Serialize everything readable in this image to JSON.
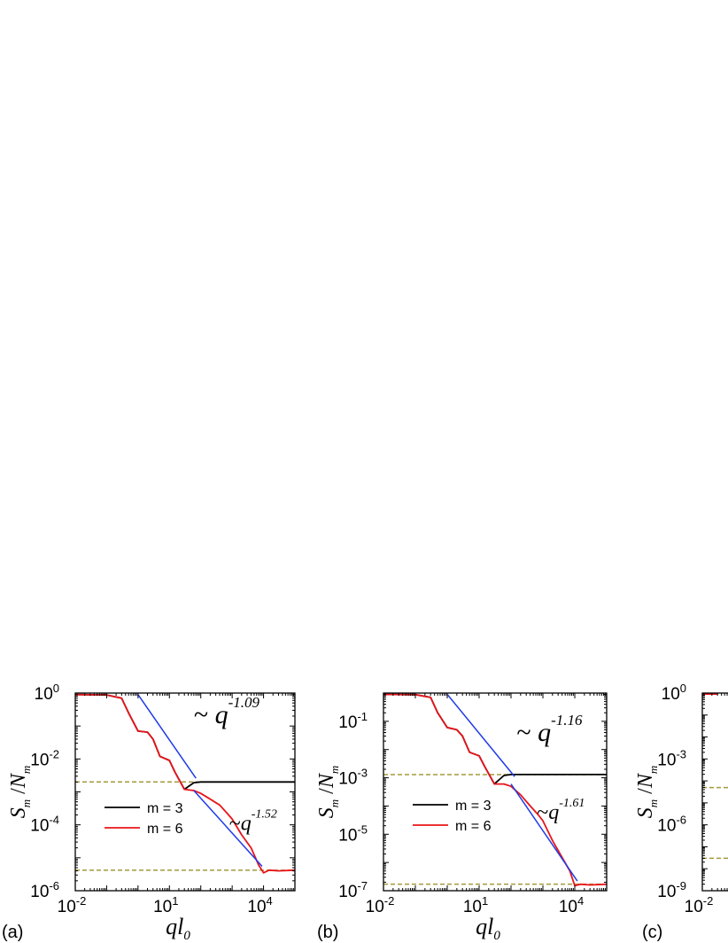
{
  "chart_data": [
    {
      "type": "line",
      "panel_label": "(a)",
      "xlabel": "ql",
      "xlabel_sub": "0",
      "ylabel_num": "S",
      "ylabel_num_sub": "m",
      "ylabel_den": "N",
      "ylabel_den_sub": "m",
      "xscale": "log",
      "yscale": "log",
      "xlim": [
        0.01,
        100000
      ],
      "ylim": [
        1e-06,
        1
      ],
      "xticks": [
        {
          "value": 0.01,
          "base": "10",
          "exp": "-2"
        },
        {
          "value": 10,
          "base": "10",
          "exp": "1"
        },
        {
          "value": 10000,
          "base": "10",
          "exp": "4"
        }
      ],
      "yticks": [
        {
          "value": 1,
          "base": "10",
          "exp": "0"
        },
        {
          "value": 0.01,
          "base": "10",
          "exp": "-2"
        },
        {
          "value": 0.0001,
          "base": "10",
          "exp": "-4"
        },
        {
          "value": 1e-06,
          "base": "10",
          "exp": "-6"
        }
      ],
      "legend": {
        "position": "lower-left",
        "entries": [
          {
            "label": "m = 3",
            "color": "#000000"
          },
          {
            "label": "m = 6",
            "color": "#e8141a"
          }
        ]
      },
      "series": [
        {
          "name": "m = 3",
          "color": "#000000",
          "x": [
            0.01,
            0.1,
            0.3,
            0.5,
            1,
            2,
            3,
            5,
            10,
            15,
            30,
            60,
            100,
            1000,
            100000
          ],
          "y": [
            0.9,
            0.88,
            0.7,
            0.25,
            0.07,
            0.065,
            0.04,
            0.012,
            0.009,
            0.004,
            0.0012,
            0.0019,
            0.002,
            0.002,
            0.002
          ]
        },
        {
          "name": "m = 6",
          "color": "#e8141a",
          "x": [
            0.01,
            0.1,
            0.3,
            0.5,
            1,
            2,
            3,
            5,
            10,
            15,
            30,
            60,
            100,
            200,
            400,
            700,
            1000,
            2000,
            4000,
            7000,
            10000,
            15000,
            30000,
            100000
          ],
          "y": [
            0.9,
            0.88,
            0.7,
            0.25,
            0.07,
            0.065,
            0.04,
            0.012,
            0.009,
            0.004,
            0.0012,
            0.0011,
            0.0009,
            0.0006,
            0.0004,
            0.00022,
            0.00015,
            5e-05,
            2e-05,
            6e-06,
            3.5e-06,
            4.2e-06,
            4e-06,
            4.2e-06
          ]
        }
      ],
      "fits": [
        {
          "x": [
            1,
            70
          ],
          "y": [
            0.9,
            0.0026
          ],
          "color": "#1f3be8"
        },
        {
          "x": [
            60,
            9000
          ],
          "y": [
            0.0011,
            5.5e-06
          ],
          "color": "#1f3be8"
        }
      ],
      "reference_lines": [
        {
          "y": 0.002,
          "color": "#a39a3c",
          "style": "dashed"
        },
        {
          "y": 4.2e-06,
          "color": "#a39a3c",
          "style": "dashed"
        }
      ],
      "annotations": [
        {
          "prefix": "~ ",
          "text": "q",
          "exp": "-1.09",
          "at": [
            60,
            0.12
          ],
          "size": "large"
        },
        {
          "prefix": "~",
          "text": "q",
          "exp": "-1.52",
          "at": [
            800,
            7e-05
          ],
          "size": "small"
        }
      ]
    },
    {
      "type": "line",
      "panel_label": "(b)",
      "xlabel": "ql",
      "xlabel_sub": "0",
      "ylabel_num": "S",
      "ylabel_num_sub": "m",
      "ylabel_den": "N",
      "ylabel_den_sub": "m",
      "xscale": "log",
      "yscale": "log",
      "xlim": [
        0.01,
        100000
      ],
      "ylim": [
        1e-07,
        1
      ],
      "xticks": [
        {
          "value": 0.01,
          "base": "10",
          "exp": "-2"
        },
        {
          "value": 10,
          "base": "10",
          "exp": "1"
        },
        {
          "value": 10000,
          "base": "10",
          "exp": "4"
        }
      ],
      "yticks": [
        {
          "value": 0.1,
          "base": "10",
          "exp": "-1"
        },
        {
          "value": 0.001,
          "base": "10",
          "exp": "-3"
        },
        {
          "value": 1e-05,
          "base": "10",
          "exp": "-5"
        },
        {
          "value": 1e-07,
          "base": "10",
          "exp": "-7"
        }
      ],
      "legend": {
        "position": "lower-left",
        "entries": [
          {
            "label": "m = 3",
            "color": "#000000"
          },
          {
            "label": "m = 6",
            "color": "#e8141a"
          }
        ]
      },
      "series": [
        {
          "name": "m = 3",
          "color": "#000000",
          "x": [
            0.01,
            0.1,
            0.3,
            0.5,
            1,
            2,
            3,
            5,
            10,
            15,
            30,
            60,
            100,
            1000,
            100000
          ],
          "y": [
            0.9,
            0.88,
            0.7,
            0.2,
            0.06,
            0.05,
            0.03,
            0.008,
            0.006,
            0.0025,
            0.0006,
            0.0012,
            0.0013,
            0.0013,
            0.0013
          ]
        },
        {
          "name": "m = 6",
          "color": "#e8141a",
          "x": [
            0.01,
            0.1,
            0.3,
            0.5,
            1,
            2,
            3,
            5,
            10,
            15,
            30,
            60,
            100,
            200,
            400,
            700,
            1000,
            2000,
            4000,
            7000,
            10000,
            15000,
            30000,
            100000
          ],
          "y": [
            0.9,
            0.88,
            0.7,
            0.2,
            0.06,
            0.05,
            0.03,
            0.008,
            0.006,
            0.0025,
            0.0006,
            0.0006,
            0.0005,
            0.00025,
            0.0001,
            5e-05,
            3e-05,
            6e-06,
            1.5e-06,
            5e-07,
            1.5e-07,
            1.7e-07,
            1.6e-07,
            1.7e-07
          ]
        }
      ],
      "fits": [
        {
          "x": [
            1,
            130
          ],
          "y": [
            0.9,
            0.0011
          ],
          "color": "#1f3be8"
        },
        {
          "x": [
            100,
            12000
          ],
          "y": [
            0.0006,
            2.2e-07
          ],
          "color": "#1f3be8"
        }
      ],
      "reference_lines": [
        {
          "y": 0.0013,
          "color": "#a39a3c",
          "style": "dashed"
        },
        {
          "y": 1.7e-07,
          "color": "#a39a3c",
          "style": "dashed"
        }
      ],
      "annotations": [
        {
          "prefix": "~ ",
          "text": "q",
          "exp": "-1.16",
          "at": [
            150,
            0.02
          ],
          "size": "large"
        },
        {
          "prefix": "~",
          "text": "q",
          "exp": "-1.61",
          "at": [
            650,
            3.5e-05
          ],
          "size": "small"
        }
      ]
    },
    {
      "type": "line",
      "panel_label": "(c)",
      "xlabel": "",
      "ylabel_num": "S",
      "ylabel_num_sub": "m",
      "ylabel_den": "N",
      "ylabel_den_sub": "m",
      "xscale": "log",
      "yscale": "log",
      "xlim": [
        0.01,
        100000
      ],
      "ylim": [
        1e-09,
        1
      ],
      "xticks": [
        {
          "value": 0.01,
          "base": "10",
          "exp": "-2"
        }
      ],
      "yticks": [
        {
          "value": 1,
          "base": "10",
          "exp": "0"
        },
        {
          "value": 0.001,
          "base": "10",
          "exp": "-3"
        },
        {
          "value": 1e-06,
          "base": "10",
          "exp": "-6"
        },
        {
          "value": 1e-09,
          "base": "10",
          "exp": "-9"
        }
      ],
      "series": [
        {
          "name": "",
          "color": "#e8141a",
          "x": [
            0.01,
            0.03
          ],
          "y": [
            0.9,
            0.9
          ]
        }
      ],
      "reference_lines": [
        {
          "y": 5e-05,
          "color": "#a39a3c",
          "style": "dashed"
        },
        {
          "y": 3e-08,
          "color": "#a39a3c",
          "style": "dashed"
        }
      ]
    }
  ]
}
